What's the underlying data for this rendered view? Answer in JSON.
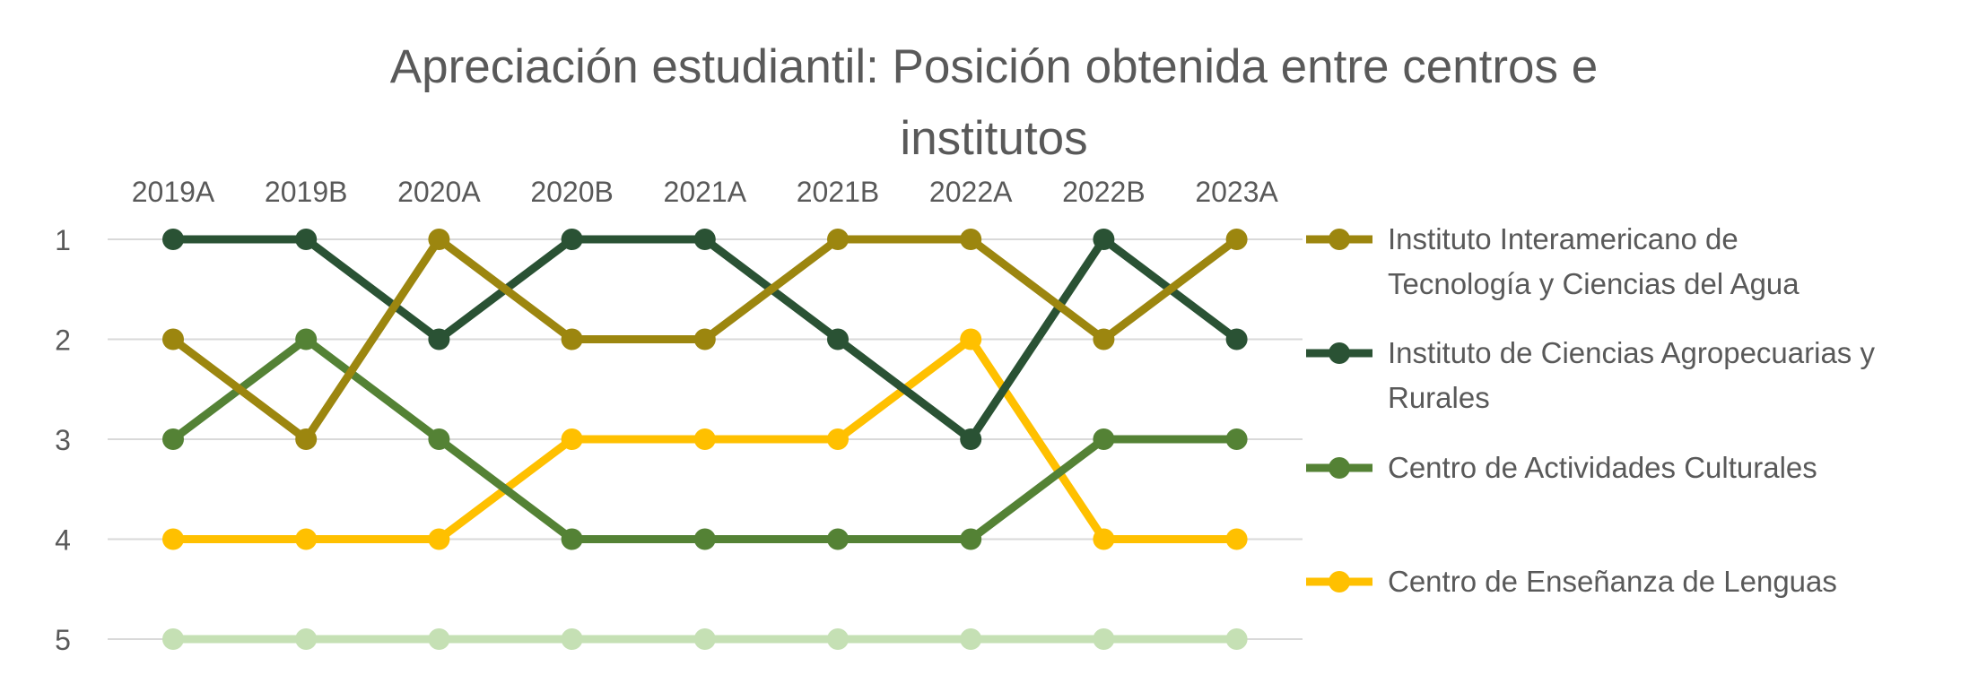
{
  "chart_data": {
    "type": "line",
    "title_lines": [
      "Apreciación estudiantil: Posición obtenida entre centros e",
      "institutos"
    ],
    "x": [
      "2019A",
      "2019B",
      "2020A",
      "2020B",
      "2021A",
      "2021B",
      "2022A",
      "2022B",
      "2023A"
    ],
    "y_ticks": [
      "1",
      "2",
      "3",
      "4",
      "5"
    ],
    "ylim": [
      1,
      5
    ],
    "y_inverted": true,
    "grid": true,
    "legend_position": "right",
    "series": [
      {
        "name": "Instituto Interamericano de Tecnología y Ciencias del Agua",
        "legend_lines": [
          "Instituto Interamericano de",
          "Tecnología y Ciencias del Agua"
        ],
        "color": "#9C860F",
        "values": [
          2,
          3,
          1,
          2,
          2,
          1,
          1,
          2,
          1
        ]
      },
      {
        "name": "Instituto de Ciencias Agropecuarias y Rurales",
        "legend_lines": [
          "Instituto de Ciencias Agropecuarias y",
          "Rurales"
        ],
        "color": "#2A5234",
        "values": [
          1,
          1,
          2,
          1,
          1,
          2,
          3,
          1,
          2
        ]
      },
      {
        "name": "Centro de Actividades Culturales",
        "legend_lines": [
          "Centro de Actividades Culturales"
        ],
        "color": "#548235",
        "values": [
          3,
          2,
          3,
          4,
          4,
          4,
          4,
          3,
          3
        ]
      },
      {
        "name": "Centro de Enseñanza de Lenguas",
        "legend_lines": [
          "Centro de Enseñanza de Lenguas"
        ],
        "color": "#FFC000",
        "values": [
          4,
          4,
          4,
          3,
          3,
          3,
          2,
          4,
          4
        ]
      },
      {
        "name": "",
        "legend_lines": [],
        "color": "#C5E0B4",
        "values": [
          5,
          5,
          5,
          5,
          5,
          5,
          5,
          5,
          5
        ]
      }
    ]
  }
}
